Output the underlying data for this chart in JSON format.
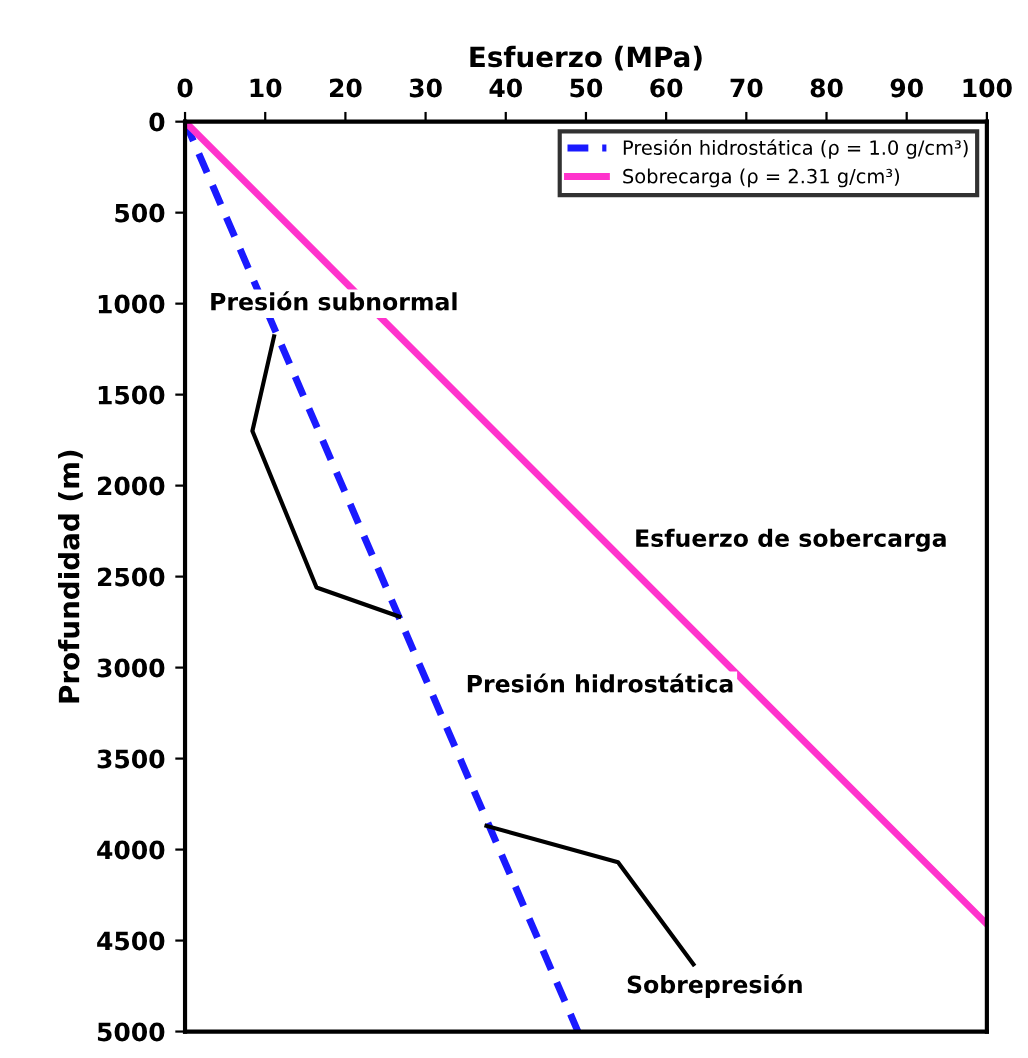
{
  "chart_data": {
    "type": "line",
    "xlabel": "Esfuerzo (MPa)",
    "ylabel": "Profundidad (m)",
    "xlim": [
      0,
      100
    ],
    "xticks": [
      0,
      10,
      20,
      30,
      40,
      50,
      60,
      70,
      80,
      90,
      100
    ],
    "ylim": [
      5000,
      0
    ],
    "yticks": [
      0,
      500,
      1000,
      1500,
      2000,
      2500,
      3000,
      3500,
      4000,
      4500,
      5000
    ],
    "grid": false,
    "legend": "top right",
    "series": [
      {
        "name": "Presión hidrostática (ρ = 1.0 g/cm³)",
        "color": "#1a1aff",
        "line_style": "dashed",
        "x": [
          0,
          49
        ],
        "values": [
          0,
          5000
        ]
      },
      {
        "name": "Sobrecarga (ρ = 2.31 g/cm³)",
        "color": "#ff33cc",
        "line_style": "solid",
        "x": [
          0,
          100
        ],
        "values": [
          0,
          4410
        ]
      },
      {
        "color": "#000000",
        "line_style": "solid",
        "x": [
          11.1,
          8.4,
          16.4,
          26.7
        ],
        "values": [
          1180,
          1700,
          2560,
          2720
        ]
      },
      {
        "color": "#000000",
        "line_style": "solid",
        "x": [
          37.6,
          54,
          63.4
        ],
        "values": [
          3870,
          4070,
          4630
        ]
      }
    ],
    "annotations": [
      "Presión subnormal",
      "Esfuerzo de sobercarga",
      "Presión hidrostática",
      "Sobrepresión"
    ]
  }
}
